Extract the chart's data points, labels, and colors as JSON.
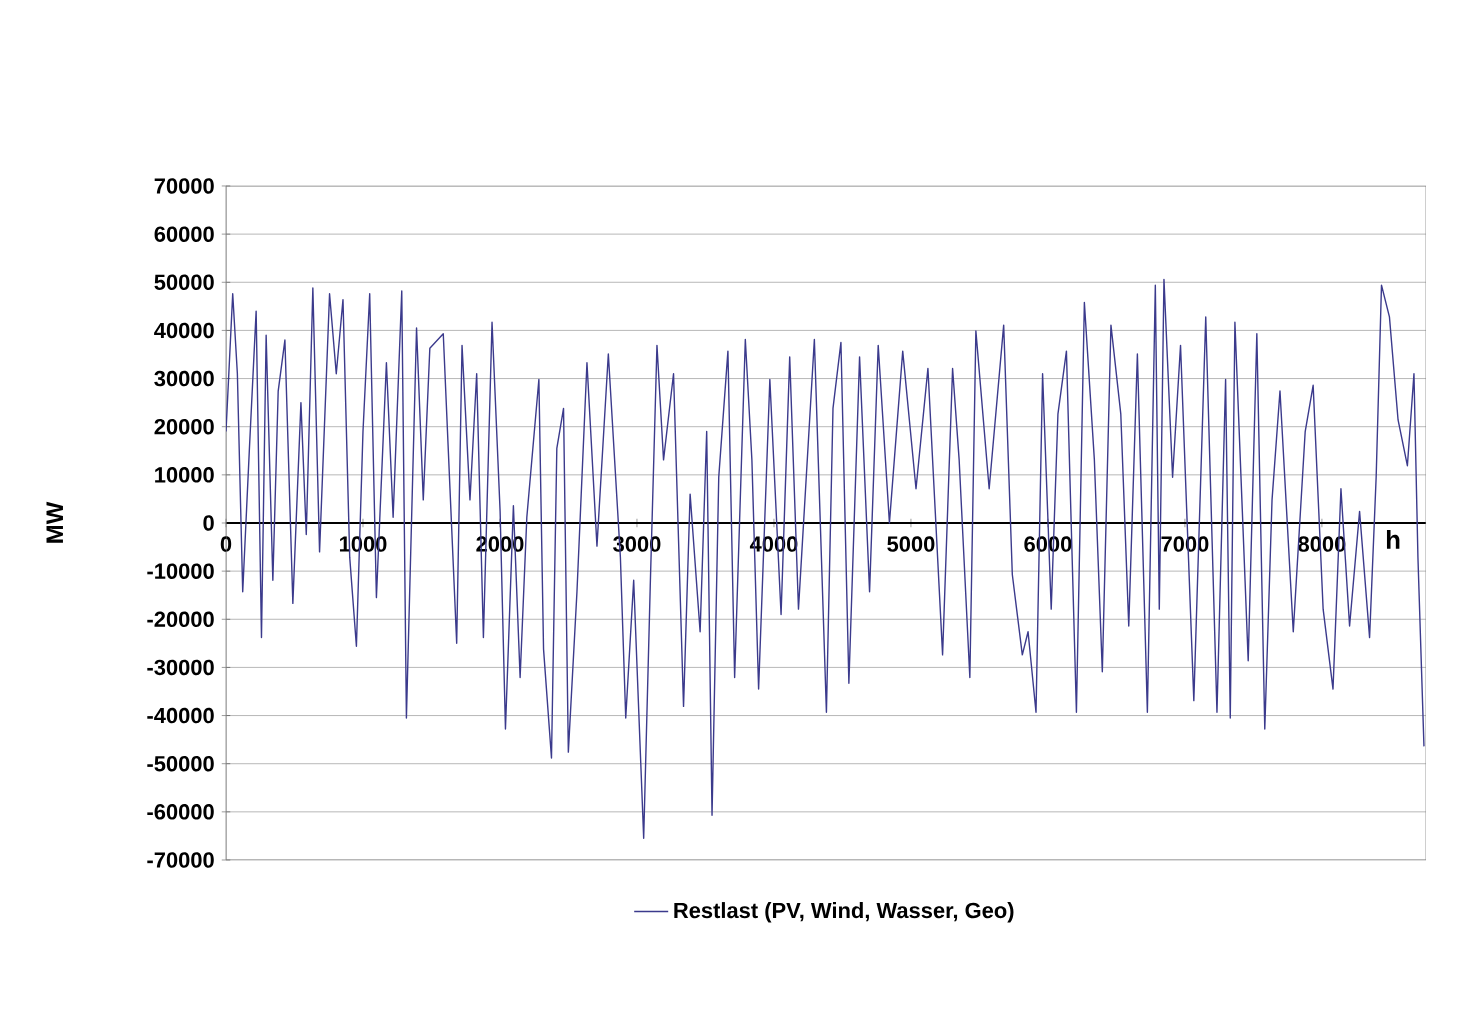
{
  "chart_data": {
    "type": "line",
    "ylabel": "MW",
    "xlabel": "h",
    "xlim": [
      0,
      8760
    ],
    "ylim": [
      -70000,
      70000
    ],
    "xticks": [
      0,
      1000,
      2000,
      3000,
      4000,
      5000,
      6000,
      7000,
      8000
    ],
    "yticks": [
      -70000,
      -60000,
      -50000,
      -40000,
      -30000,
      -20000,
      -10000,
      0,
      10000,
      20000,
      30000,
      40000,
      50000,
      60000,
      70000
    ],
    "grid": "y",
    "legend": "bottom",
    "marker": "none",
    "line_style": "solid",
    "series": [
      {
        "name": "Restlast (PV, Wind, Wasser, Geo)",
        "color": "#3b3a8c",
        "x": [
          0,
          49,
          83,
          122,
          171,
          220,
          259,
          293,
          342,
          381,
          430,
          488,
          547,
          586,
          634,
          683,
          756,
          805,
          854,
          903,
          952,
          1000,
          1049,
          1098,
          1171,
          1220,
          1283,
          1317,
          1391,
          1440,
          1488,
          1586,
          1635,
          1684,
          1723,
          1781,
          1830,
          1879,
          1942,
          2001,
          2040,
          2098,
          2147,
          2196,
          2284,
          2318,
          2376,
          2415,
          2464,
          2499,
          2562,
          2635,
          2708,
          2791,
          2879,
          2918,
          2976,
          3049,
          3097,
          3146,
          3194,
          3267,
          3340,
          3388,
          3461,
          3509,
          3548,
          3597,
          3664,
          3713,
          3791,
          3839,
          3888,
          3970,
          4052,
          4115,
          4179,
          4295,
          4383,
          4431,
          4489,
          4547,
          4625,
          4698,
          4761,
          4843,
          4940,
          5037,
          5124,
          5231,
          5304,
          5352,
          5430,
          5474,
          5571,
          5677,
          5740,
          5813,
          5855,
          5913,
          5961,
          6024,
          6073,
          6135,
          6208,
          6266,
          6339,
          6397,
          6460,
          6532,
          6590,
          6653,
          6726,
          6784,
          6813,
          6847,
          6910,
          6968,
          7065,
          7152,
          7234,
          7297,
          7331,
          7365,
          7462,
          7525,
          7583,
          7636,
          7694,
          7791,
          7878,
          7936,
          8009,
          8081,
          8139,
          8202,
          8275,
          8348,
          8396,
          8435,
          8493,
          8556,
          8624,
          8672,
          8701,
          8745
        ],
        "values": [
          19000,
          47600,
          31000,
          -14300,
          15500,
          44000,
          -23800,
          39000,
          -11900,
          27400,
          38000,
          -16700,
          25000,
          -2400,
          48800,
          -6000,
          47600,
          31000,
          46400,
          -7100,
          -25600,
          19000,
          47600,
          -15500,
          33300,
          1200,
          48200,
          -40500,
          40500,
          4800,
          36300,
          39300,
          7100,
          -25000,
          36900,
          4800,
          31000,
          -23800,
          41700,
          2400,
          -42800,
          3600,
          -32100,
          1200,
          29800,
          -26200,
          -48800,
          15500,
          23800,
          -47600,
          -14300,
          33300,
          -4800,
          35100,
          -7100,
          -40500,
          -11900,
          -65500,
          -13100,
          36900,
          13100,
          31000,
          -38100,
          6000,
          -22600,
          19000,
          -60700,
          9500,
          35700,
          -32100,
          38100,
          13100,
          -34500,
          29800,
          -19000,
          34500,
          -17900,
          38100,
          -39300,
          23800,
          37500,
          -33300,
          34500,
          -14300,
          36900,
          0,
          35700,
          7100,
          32100,
          -27400,
          32100,
          13100,
          -32100,
          39900,
          7100,
          41100,
          -10700,
          -27400,
          -22600,
          -39300,
          31000,
          -17900,
          22600,
          35700,
          -39300,
          45800,
          13100,
          -30900,
          41100,
          22600,
          -21400,
          35100,
          -39300,
          49400,
          -17900,
          50600,
          9500,
          36900,
          -36900,
          42800,
          -39300,
          29800,
          -40500,
          41700,
          -28600,
          39300,
          -42800,
          4800,
          27400,
          -22600,
          19000,
          28600,
          -17900,
          -34500,
          7100,
          -21400,
          2400,
          -23800,
          9500,
          49400,
          42800,
          21400,
          11900,
          31000,
          -7100,
          -46400
        ]
      }
    ]
  }
}
